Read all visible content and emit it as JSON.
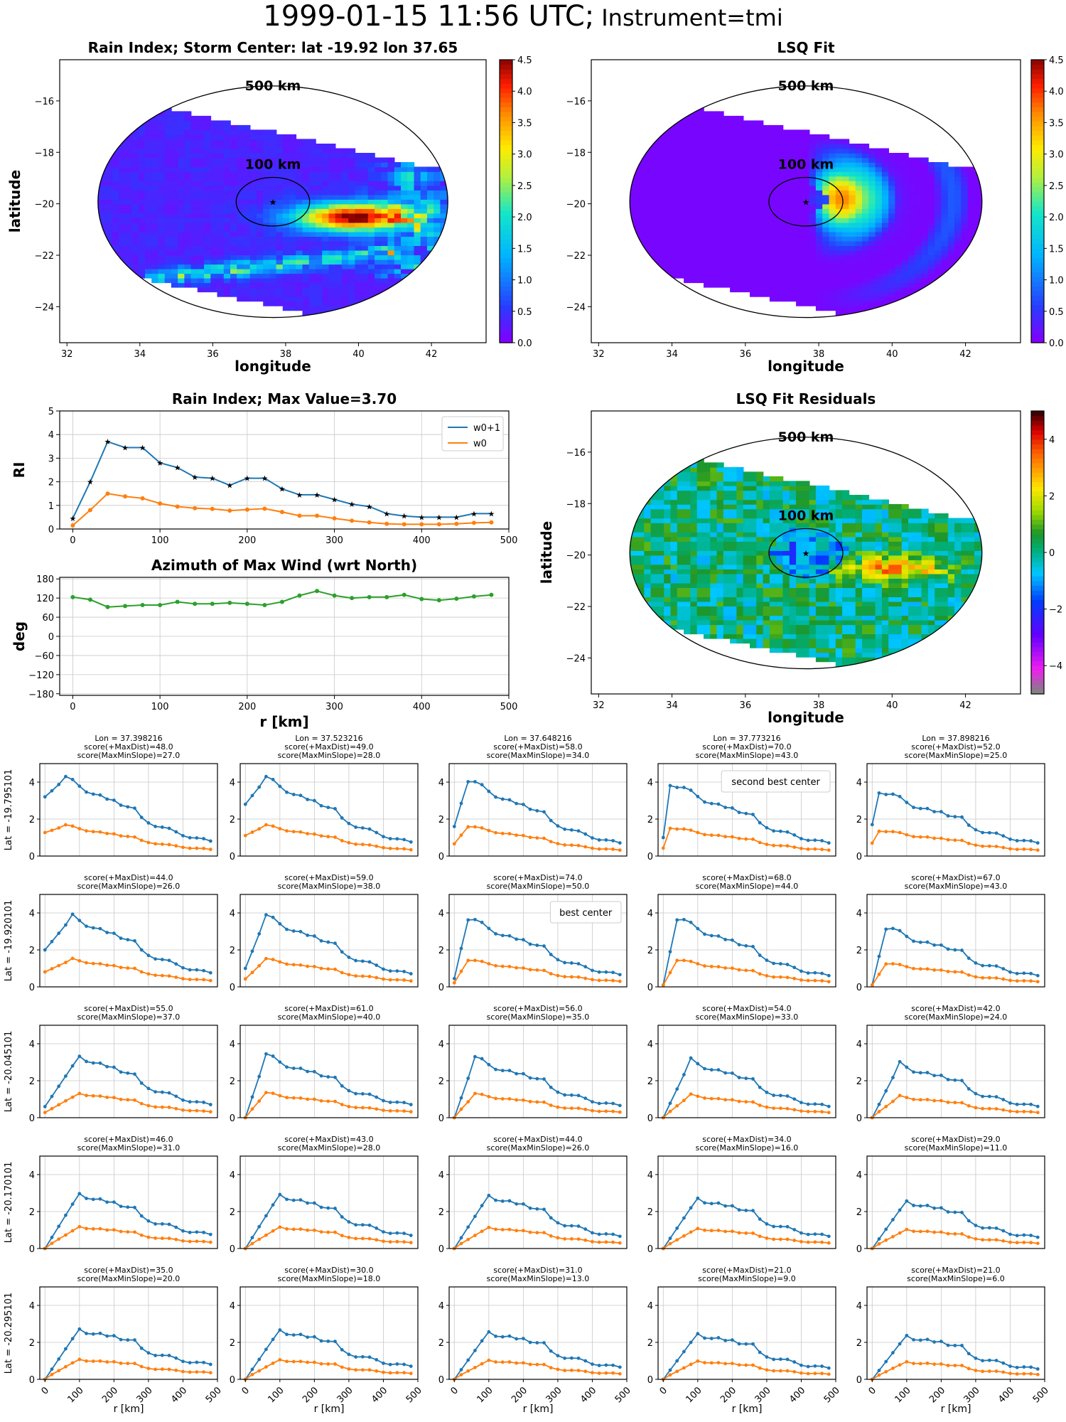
{
  "suptitle": {
    "main": "1999-01-15 11:56 UTC;",
    "sub": "Instrument=tmi"
  },
  "maps": [
    {
      "title": "Rain Index; Storm Center: lat -19.92 lon 37.65",
      "xlabel": "longitude",
      "ylabel": "latitude",
      "ring_outer": "500 km",
      "ring_inner": "100 km",
      "colorbar": {
        "min": 0.0,
        "max": 4.5,
        "ticks": [
          "0.0",
          "0.5",
          "1.0",
          "1.5",
          "2.0",
          "2.5",
          "3.0",
          "3.5",
          "4.0",
          "4.5"
        ],
        "colormap": "jet"
      }
    },
    {
      "title": "LSQ Fit",
      "xlabel": "longitude",
      "ylabel": "",
      "ring_outer": "500 km",
      "ring_inner": "100 km",
      "colorbar": {
        "min": 0.0,
        "max": 4.5,
        "ticks": [
          "0.0",
          "0.5",
          "1.0",
          "1.5",
          "2.0",
          "2.5",
          "3.0",
          "3.5",
          "4.0",
          "4.5"
        ],
        "colormap": "jet"
      }
    },
    {
      "title": "LSQ Fit Residuals",
      "xlabel": "longitude",
      "ylabel": "latitude",
      "ring_outer": "500 km",
      "ring_inner": "100 km",
      "colorbar": {
        "min": -5,
        "max": 5,
        "ticks": [
          "−4",
          "−2",
          "0",
          "2",
          "4"
        ],
        "colormap": "gist_ncar"
      }
    }
  ],
  "map_axes": {
    "xticks": [
      "32",
      "34",
      "36",
      "38",
      "40",
      "42"
    ],
    "yticks": [
      "−16",
      "−18",
      "−20",
      "−22",
      "−24"
    ],
    "xlim": [
      31.8,
      43.5
    ],
    "ylim": [
      -25.4,
      -14.4
    ],
    "center": [
      37.65,
      -19.92
    ]
  },
  "chart_data": [
    {
      "type": "line",
      "title": "Rain Index; Max Value=3.70",
      "xlabel": "",
      "ylabel": "RI",
      "ylim": [
        0,
        5
      ],
      "xlim": [
        -15,
        500
      ],
      "yticks": [
        "0",
        "1",
        "2",
        "3",
        "4",
        "5"
      ],
      "xticks": [
        "0",
        "100",
        "200",
        "300",
        "400",
        "500"
      ],
      "x": [
        0,
        20,
        40,
        60,
        80,
        100,
        120,
        140,
        160,
        180,
        200,
        220,
        240,
        260,
        280,
        300,
        320,
        340,
        360,
        380,
        400,
        420,
        440,
        460,
        480
      ],
      "series": [
        {
          "name": "w0+1",
          "color": "#1f77b4",
          "values": [
            0.45,
            2.0,
            3.7,
            3.45,
            3.45,
            2.8,
            2.6,
            2.2,
            2.15,
            1.85,
            2.15,
            2.15,
            1.7,
            1.45,
            1.45,
            1.25,
            1.05,
            0.95,
            0.65,
            0.55,
            0.5,
            0.5,
            0.5,
            0.65,
            0.65
          ]
        },
        {
          "name": "w0",
          "color": "#ff7f0e",
          "values": [
            0.15,
            0.8,
            1.5,
            1.38,
            1.3,
            1.08,
            0.95,
            0.88,
            0.85,
            0.78,
            0.82,
            0.86,
            0.72,
            0.56,
            0.56,
            0.45,
            0.35,
            0.28,
            0.22,
            0.2,
            0.2,
            0.2,
            0.22,
            0.26,
            0.28
          ]
        }
      ],
      "legend": "top-right"
    },
    {
      "type": "line",
      "title": "Azimuth of Max Wind (wrt North)",
      "xlabel": "r [km]",
      "ylabel": "deg",
      "ylim": [
        -185,
        185
      ],
      "xlim": [
        -15,
        500
      ],
      "yticks": [
        "180",
        "120",
        "60",
        "0",
        "−60",
        "−120",
        "−180"
      ],
      "xticks": [
        "0",
        "100",
        "200",
        "300",
        "400",
        "500"
      ],
      "x": [
        0,
        20,
        40,
        60,
        80,
        100,
        120,
        140,
        160,
        180,
        200,
        220,
        240,
        260,
        280,
        300,
        320,
        340,
        360,
        380,
        400,
        420,
        440,
        460,
        480
      ],
      "series": [
        {
          "color": "#2ca02c",
          "values": [
            123,
            115,
            92,
            95,
            98,
            98,
            108,
            102,
            102,
            105,
            102,
            98,
            108,
            128,
            142,
            128,
            120,
            123,
            123,
            130,
            117,
            113,
            118,
            125,
            130
          ]
        }
      ]
    }
  ],
  "grid": {
    "xlabel": "r [km]",
    "xticks": [
      "0",
      "100",
      "200",
      "300",
      "400",
      "500"
    ],
    "yticks": [
      "0",
      "2",
      "4"
    ],
    "ylim": [
      0,
      5
    ],
    "xlim": [
      -15,
      500
    ],
    "x": [
      0,
      20,
      40,
      60,
      80,
      100,
      120,
      140,
      160,
      180,
      200,
      220,
      240,
      260,
      280,
      300,
      320,
      340,
      360,
      380,
      400,
      420,
      440,
      460,
      480
    ],
    "lon_labels": [
      "Lon = 37.398216",
      "Lon = 37.523216",
      "Lon = 37.648216",
      "Lon = 37.773216",
      "Lon = 37.898216"
    ],
    "lat_labels": [
      "Lat = -19.795101",
      "Lat = -19.920101",
      "Lat = -20.045101",
      "Lat = -20.170101",
      "Lat = -20.295101"
    ],
    "rows": [
      [
        {
          "t1": "score(+MaxDist)=48.0",
          "t2": "score(MaxMinSlope)=27.0",
          "peak": 4.2,
          "pk": 3,
          "base": 3.2,
          "bump": 1.0,
          "tail": 0.8
        },
        {
          "t1": "score(+MaxDist)=49.0",
          "t2": "score(MaxMinSlope)=28.0",
          "peak": 4.2,
          "pk": 3,
          "base": 2.8,
          "bump": 0.9,
          "tail": 0.75
        },
        {
          "t1": "score(+MaxDist)=58.0",
          "t2": "score(MaxMinSlope)=34.0",
          "peak": 4.1,
          "pk": 2,
          "base": 1.6,
          "bump": 0.9,
          "tail": 0.7
        },
        {
          "t1": "score(+MaxDist)=70.0",
          "t2": "score(MaxMinSlope)=43.0",
          "peak": 3.95,
          "pk": 1,
          "base": 1.0,
          "bump": 0.9,
          "tail": 0.7,
          "hl": "red",
          "annot": "second best center"
        },
        {
          "t1": "score(+MaxDist)=52.0",
          "t2": "score(MaxMinSlope)=25.0",
          "peak": 3.55,
          "pk": 1,
          "base": 1.7,
          "bump": 0.8,
          "tail": 0.7
        }
      ],
      [
        {
          "t1": "score(+MaxDist)=44.0",
          "t2": "score(MaxMinSlope)=26.0",
          "peak": 3.8,
          "pk": 4,
          "base": 2.0,
          "bump": 0.9,
          "tail": 0.75
        },
        {
          "t1": "score(+MaxDist)=59.0",
          "t2": "score(MaxMinSlope)=38.0",
          "peak": 3.8,
          "pk": 3,
          "base": 1.0,
          "bump": 0.9,
          "tail": 0.7
        },
        {
          "t1": "score(+MaxDist)=74.0",
          "t2": "score(MaxMinSlope)=50.0",
          "peak": 3.7,
          "pk": 2,
          "base": 0.45,
          "bump": 0.85,
          "tail": 0.65,
          "hl": "purple",
          "annot": "best center"
        },
        {
          "t1": "score(+MaxDist)=68.0",
          "t2": "score(MaxMinSlope)=44.0",
          "peak": 3.7,
          "pk": 2,
          "base": 0.1,
          "bump": 0.8,
          "tail": 0.6
        },
        {
          "t1": "score(+MaxDist)=67.0",
          "t2": "score(MaxMinSlope)=43.0",
          "peak": 3.2,
          "pk": 2,
          "base": 0.1,
          "bump": 0.7,
          "tail": 0.6
        }
      ],
      [
        {
          "t1": "score(+MaxDist)=55.0",
          "t2": "score(MaxMinSlope)=37.0",
          "peak": 3.35,
          "pk": 5,
          "base": 0.6,
          "bump": 0.8,
          "tail": 0.7
        },
        {
          "t1": "score(+MaxDist)=61.0",
          "t2": "score(MaxMinSlope)=40.0",
          "peak": 3.35,
          "pk": 3,
          "base": 0.0,
          "bump": 0.75,
          "tail": 0.7
        },
        {
          "t1": "score(+MaxDist)=56.0",
          "t2": "score(MaxMinSlope)=35.0",
          "peak": 3.2,
          "pk": 3,
          "base": 0.0,
          "bump": 0.7,
          "tail": 0.65
        },
        {
          "t1": "score(+MaxDist)=54.0",
          "t2": "score(MaxMinSlope)=33.0",
          "peak": 3.1,
          "pk": 4,
          "base": 0.0,
          "bump": 0.65,
          "tail": 0.6
        },
        {
          "t1": "score(+MaxDist)=42.0",
          "t2": "score(MaxMinSlope)=24.0",
          "peak": 2.9,
          "pk": 4,
          "base": 0.0,
          "bump": 0.6,
          "tail": 0.6
        }
      ],
      [
        {
          "t1": "score(+MaxDist)=46.0",
          "t2": "score(MaxMinSlope)=31.0",
          "peak": 3.0,
          "pk": 5,
          "base": 0.0,
          "bump": 0.8,
          "tail": 0.75
        },
        {
          "t1": "score(+MaxDist)=43.0",
          "t2": "score(MaxMinSlope)=28.0",
          "peak": 2.95,
          "pk": 5,
          "base": 0.0,
          "bump": 0.75,
          "tail": 0.7
        },
        {
          "t1": "score(+MaxDist)=44.0",
          "t2": "score(MaxMinSlope)=26.0",
          "peak": 2.9,
          "pk": 5,
          "base": 0.0,
          "bump": 0.7,
          "tail": 0.65
        },
        {
          "t1": "score(+MaxDist)=34.0",
          "t2": "score(MaxMinSlope)=16.0",
          "peak": 2.75,
          "pk": 5,
          "base": 0.0,
          "bump": 0.6,
          "tail": 0.65
        },
        {
          "t1": "score(+MaxDist)=29.0",
          "t2": "score(MaxMinSlope)=11.0",
          "peak": 2.6,
          "pk": 5,
          "base": 0.0,
          "bump": 0.55,
          "tail": 0.6
        }
      ],
      [
        {
          "t1": "score(+MaxDist)=35.0",
          "t2": "score(MaxMinSlope)=20.0",
          "peak": 2.75,
          "pk": 5,
          "base": 0.0,
          "bump": 0.85,
          "tail": 0.8
        },
        {
          "t1": "score(+MaxDist)=30.0",
          "t2": "score(MaxMinSlope)=18.0",
          "peak": 2.7,
          "pk": 5,
          "base": 0.0,
          "bump": 0.8,
          "tail": 0.7
        },
        {
          "t1": "score(+MaxDist)=31.0",
          "t2": "score(MaxMinSlope)=13.0",
          "peak": 2.6,
          "pk": 5,
          "base": 0.0,
          "bump": 0.7,
          "tail": 0.65
        },
        {
          "t1": "score(+MaxDist)=21.0",
          "t2": "score(MaxMinSlope)=9.0",
          "peak": 2.5,
          "pk": 5,
          "base": 0.0,
          "bump": 0.65,
          "tail": 0.6
        },
        {
          "t1": "score(+MaxDist)=21.0",
          "t2": "score(MaxMinSlope)=6.0",
          "peak": 2.4,
          "pk": 5,
          "base": 0.0,
          "bump": 0.6,
          "tail": 0.55
        }
      ]
    ]
  }
}
